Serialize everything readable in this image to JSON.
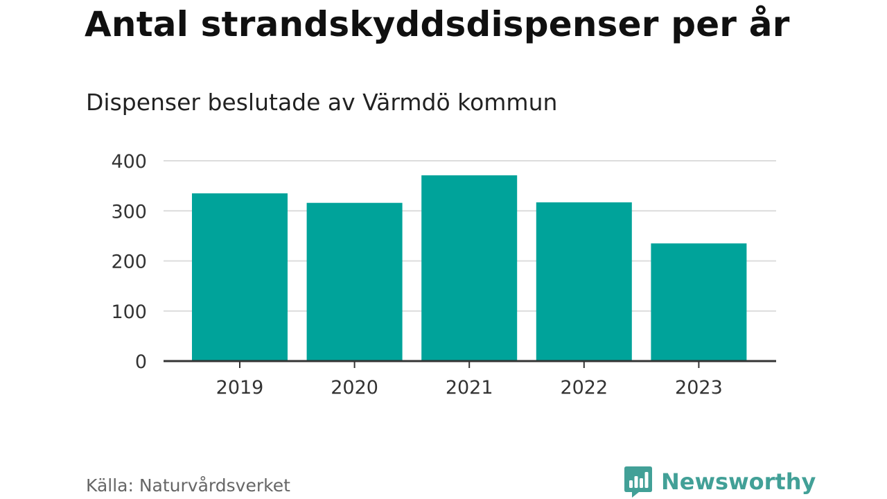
{
  "header": {
    "title": "Antal strandskyddsdispenser per år",
    "subtitle": "Dispenser beslutade av Värmdö kommun"
  },
  "chart_data": {
    "type": "bar",
    "title": "Antal strandskyddsdispenser per år",
    "subtitle": "Dispenser beslutade av Värmdö kommun",
    "categories": [
      "2019",
      "2020",
      "2021",
      "2022",
      "2023"
    ],
    "values": [
      335,
      316,
      371,
      317,
      235
    ],
    "xlabel": "",
    "ylabel": "",
    "ylim": [
      0,
      400
    ],
    "yticks": [
      0,
      100,
      200,
      300,
      400
    ],
    "grid": true,
    "bar_color": "#00a39a"
  },
  "footer": {
    "source": "Källa: Naturvårdsverket",
    "brand": "Newsworthy",
    "brand_color": "#42a097"
  },
  "icons": {
    "brand_logo": "newsworthy-logo-icon"
  }
}
